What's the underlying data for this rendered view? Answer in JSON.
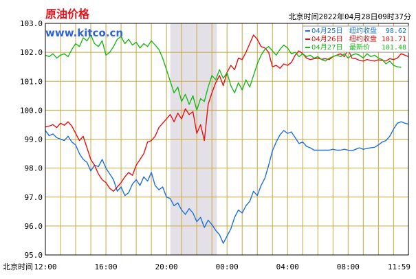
{
  "header": {
    "title": "原油价格",
    "site": "www.kitco.cn",
    "timestamp": "北京时间2022年04月28日09时37分"
  },
  "colors": {
    "title": "#e8101a",
    "site": "#2f63d9",
    "grid": "#c8a83c",
    "frame": "#000000",
    "shade": "#e4e0e8",
    "series_2504": "#1a6fe6",
    "series_2604": "#e81010",
    "series_2704": "#18b818"
  },
  "chart_data": {
    "type": "line",
    "title": "原油价格",
    "xlabel": "北京时间",
    "ylabel": "",
    "ylim": [
      95.0,
      103.0
    ],
    "xlim": [
      0,
      1439
    ],
    "x_unit": "minutes after 12:00",
    "yticks": [
      "103.0",
      "102.0",
      "101.0",
      "100.0",
      "99.0",
      "98.0",
      "97.0",
      "96.0",
      "95.0"
    ],
    "xticks": [
      {
        "x": 0,
        "label": "12:00"
      },
      {
        "x": 240,
        "label": "16:00"
      },
      {
        "x": 480,
        "label": "20:00"
      },
      {
        "x": 720,
        "label": "00:00"
      },
      {
        "x": 960,
        "label": "04:00"
      },
      {
        "x": 1200,
        "label": "08:00"
      },
      {
        "x": 1439,
        "label": "11:59"
      }
    ],
    "shaded_range": [
      495,
      680
    ],
    "grid": true,
    "legend_position": "top-right",
    "legend": [
      {
        "date": "04月25日",
        "label": "纽约收盘",
        "value": "98.62"
      },
      {
        "date": "04月26日",
        "label": "纽约收盘",
        "value": "101.71"
      },
      {
        "date": "04月27日",
        "label": "最新价",
        "value": "101.48"
      }
    ],
    "series": [
      {
        "name": "04月25日",
        "color": "#1a6fe6",
        "x": [
          0,
          15,
          30,
          45,
          60,
          75,
          90,
          105,
          120,
          135,
          150,
          165,
          180,
          195,
          210,
          225,
          240,
          255,
          270,
          285,
          300,
          315,
          330,
          345,
          360,
          375,
          390,
          405,
          420,
          435,
          450,
          465,
          480,
          495,
          510,
          525,
          540,
          555,
          570,
          585,
          600,
          615,
          630,
          645,
          660,
          675,
          690,
          705,
          720,
          735,
          750,
          765,
          780,
          795,
          810,
          825,
          840,
          855,
          870,
          885,
          900,
          915,
          930,
          945,
          960,
          975,
          990,
          1005,
          1020,
          1035,
          1050,
          1065,
          1080,
          1095,
          1110,
          1125,
          1140,
          1155,
          1170,
          1185,
          1200,
          1215,
          1230,
          1245,
          1260,
          1275,
          1290,
          1305,
          1320,
          1335,
          1350,
          1365,
          1380,
          1395,
          1410,
          1425,
          1439
        ],
        "y": [
          99.3,
          99.12,
          99.18,
          99.05,
          99.0,
          98.95,
          99.1,
          98.9,
          98.8,
          98.5,
          98.3,
          98.2,
          97.9,
          98.1,
          98.05,
          98.3,
          98.0,
          97.8,
          97.6,
          97.2,
          97.35,
          97.05,
          97.15,
          97.45,
          97.6,
          97.4,
          97.7,
          97.55,
          97.85,
          97.4,
          97.25,
          97.35,
          97.0,
          96.95,
          96.7,
          96.8,
          96.55,
          96.4,
          96.6,
          96.45,
          96.15,
          96.3,
          95.95,
          96.2,
          96.05,
          95.85,
          95.7,
          95.4,
          95.65,
          95.9,
          96.3,
          96.55,
          96.45,
          96.7,
          96.85,
          97.2,
          97.05,
          97.4,
          97.65,
          98.1,
          98.6,
          98.9,
          99.15,
          99.3,
          99.2,
          99.25,
          99.05,
          98.85,
          98.9,
          98.75,
          98.7,
          98.62,
          98.62,
          98.62,
          98.62,
          98.62,
          98.65,
          98.62,
          98.62,
          98.65,
          98.62,
          98.6,
          98.65,
          98.7,
          98.65,
          98.68,
          98.7,
          98.72,
          98.8,
          98.9,
          98.95,
          99.1,
          99.35,
          99.55,
          99.6,
          99.55,
          99.52
        ]
      },
      {
        "name": "04月26日",
        "color": "#e81010",
        "x": [
          0,
          15,
          30,
          45,
          60,
          75,
          90,
          105,
          120,
          135,
          150,
          165,
          180,
          195,
          210,
          225,
          240,
          255,
          270,
          285,
          300,
          315,
          330,
          345,
          360,
          375,
          390,
          405,
          420,
          435,
          450,
          465,
          480,
          495,
          510,
          525,
          540,
          555,
          570,
          585,
          600,
          615,
          630,
          645,
          660,
          675,
          690,
          705,
          720,
          735,
          750,
          765,
          780,
          795,
          810,
          825,
          840,
          855,
          870,
          885,
          900,
          915,
          930,
          945,
          960,
          975,
          990,
          1005,
          1020,
          1035,
          1050,
          1065,
          1080,
          1095,
          1110,
          1125,
          1140,
          1155,
          1170,
          1185,
          1200,
          1215,
          1230,
          1245,
          1260,
          1275,
          1290,
          1305,
          1320,
          1335,
          1350,
          1365,
          1380,
          1395,
          1410,
          1425,
          1439
        ],
        "y": [
          99.42,
          99.45,
          99.5,
          99.4,
          99.55,
          99.48,
          99.6,
          99.45,
          99.2,
          98.95,
          99.1,
          98.7,
          98.3,
          98.1,
          97.8,
          97.6,
          97.5,
          97.3,
          97.2,
          97.35,
          97.5,
          97.7,
          97.85,
          97.75,
          98.1,
          98.3,
          98.5,
          98.9,
          98.95,
          99.1,
          99.4,
          99.55,
          99.7,
          99.85,
          99.6,
          99.9,
          99.7,
          100.05,
          99.85,
          99.95,
          99.2,
          99.5,
          98.95,
          100.2,
          100.6,
          100.95,
          101.2,
          100.85,
          101.3,
          101.55,
          101.4,
          101.8,
          101.75,
          102.0,
          102.3,
          102.6,
          102.45,
          102.2,
          102.15,
          102.0,
          101.5,
          101.55,
          101.45,
          101.6,
          101.55,
          101.65,
          101.9,
          102.05,
          101.95,
          101.8,
          101.75,
          101.78,
          101.8,
          101.76,
          101.78,
          101.75,
          101.85,
          101.9,
          101.95,
          101.85,
          102.1,
          101.8,
          101.78,
          101.72,
          101.7,
          101.75,
          101.72,
          101.7,
          101.74,
          101.72,
          101.7,
          101.78,
          101.75,
          101.8,
          101.95,
          101.9,
          101.85
        ]
      },
      {
        "name": "04月27日",
        "color": "#18b818",
        "x": [
          0,
          15,
          30,
          45,
          60,
          75,
          90,
          105,
          120,
          135,
          150,
          165,
          180,
          195,
          210,
          225,
          240,
          255,
          270,
          285,
          300,
          315,
          330,
          345,
          360,
          375,
          390,
          405,
          420,
          435,
          450,
          465,
          480,
          495,
          510,
          525,
          540,
          555,
          570,
          585,
          600,
          615,
          630,
          645,
          660,
          675,
          690,
          705,
          720,
          735,
          750,
          765,
          780,
          795,
          810,
          825,
          840,
          855,
          870,
          885,
          900,
          915,
          930,
          945,
          960,
          975,
          990,
          1005,
          1020,
          1035,
          1050,
          1065,
          1080,
          1095,
          1110,
          1125,
          1140,
          1155,
          1170,
          1185,
          1200,
          1215,
          1230,
          1245,
          1260,
          1275,
          1290,
          1305,
          1320,
          1335,
          1350,
          1365,
          1380,
          1395,
          1410,
          1425
        ],
        "y": [
          101.9,
          101.85,
          101.95,
          101.8,
          101.9,
          101.95,
          101.85,
          102.1,
          102.3,
          102.2,
          102.5,
          102.4,
          102.6,
          102.3,
          102.2,
          102.4,
          101.9,
          102.0,
          102.2,
          102.45,
          102.55,
          102.3,
          102.45,
          102.25,
          102.35,
          102.15,
          102.3,
          102.2,
          102.4,
          102.25,
          102.1,
          101.8,
          101.4,
          101.0,
          100.6,
          100.8,
          100.3,
          100.55,
          100.2,
          100.5,
          100.0,
          100.4,
          100.3,
          100.8,
          101.2,
          101.05,
          101.4,
          101.1,
          101.3,
          100.85,
          100.6,
          100.95,
          100.7,
          101.05,
          100.8,
          101.2,
          101.6,
          101.9,
          102.1,
          102.2,
          102.05,
          101.9,
          102.1,
          102.25,
          102.15,
          101.95,
          102.0,
          101.85,
          101.95,
          101.85,
          101.9,
          101.8,
          101.85,
          101.75,
          101.7,
          101.8,
          101.85,
          101.9,
          101.85,
          101.95,
          101.8,
          101.9,
          101.95,
          101.9,
          101.8,
          101.95,
          101.85,
          101.9,
          101.8,
          101.75,
          101.6,
          101.7,
          101.55,
          101.5,
          101.48,
          null
        ]
      }
    ]
  }
}
